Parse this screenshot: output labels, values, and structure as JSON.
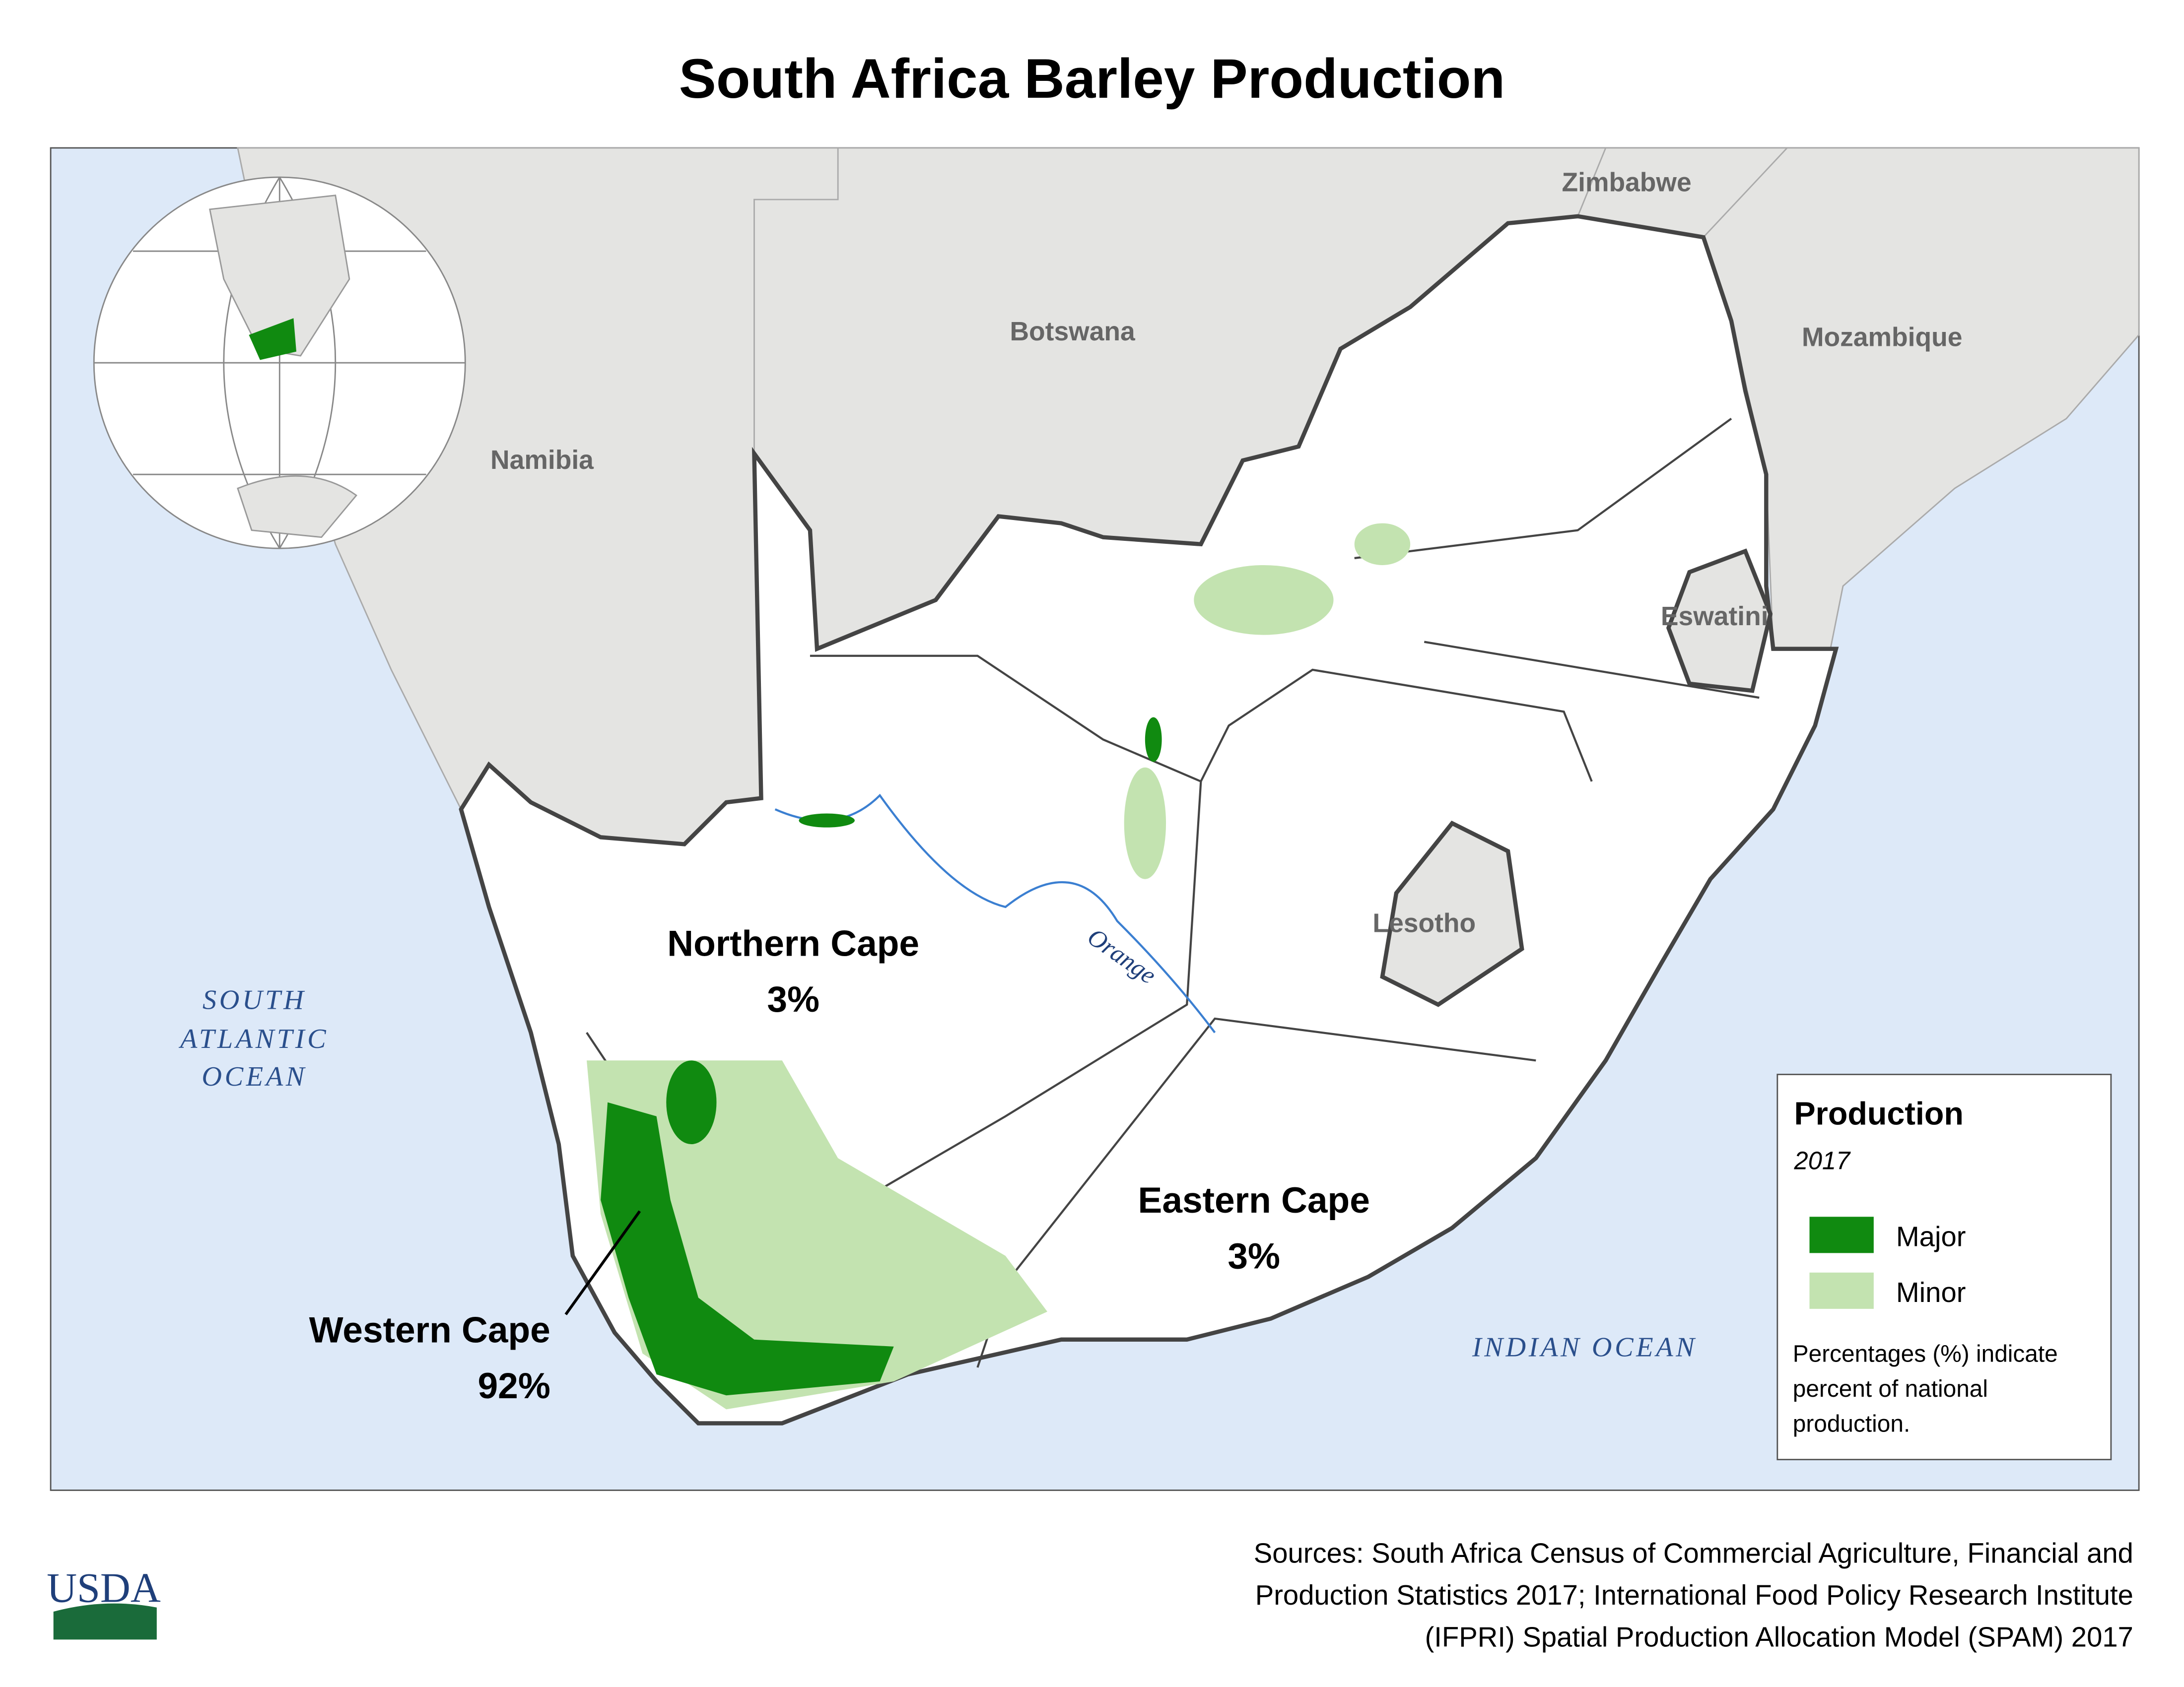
{
  "header": {
    "title": "South Africa Barley Production"
  },
  "map": {
    "countries": [
      "Zimbabwe",
      "Botswana",
      "Mozambique",
      "Namibia",
      "Eswatini",
      "Lesotho"
    ],
    "oceans": [
      [
        "SOUTH",
        "ATLANTIC",
        "OCEAN"
      ],
      [
        "INDIAN OCEAN"
      ]
    ],
    "river": "Orange",
    "provinces": [
      {
        "name": "Northern Cape",
        "share": "3%"
      },
      {
        "name": "Eastern Cape",
        "share": "3%"
      },
      {
        "name": "Western Cape",
        "share": "92%"
      }
    ]
  },
  "legend": {
    "title": "Production",
    "year": "2017",
    "items": [
      "Major",
      "Minor"
    ],
    "note": [
      "Percentages (%) indicate",
      "percent of national",
      "production."
    ]
  },
  "footer": {
    "sources": [
      "Sources: South Africa Census of Commercial Agriculture, Financial and",
      "Production Statistics 2017; International Food Policy Research Institute",
      "(IFPRI) Spatial Production Allocation Model (SPAM) 2017"
    ],
    "logo": "USDA"
  }
}
